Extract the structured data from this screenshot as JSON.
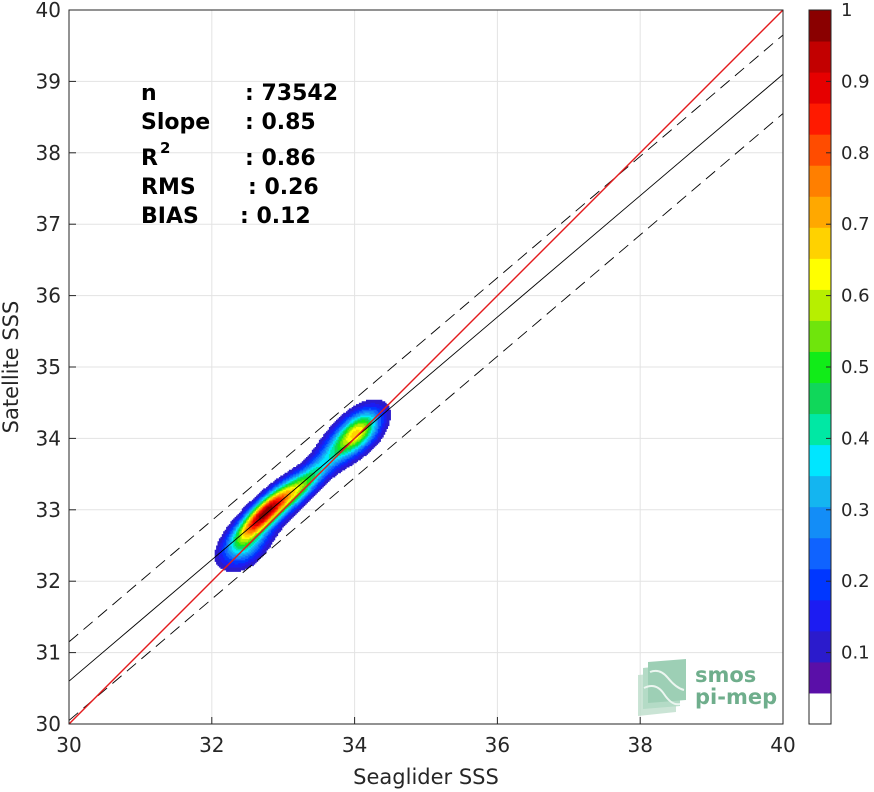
{
  "chart_data": {
    "type": "contour",
    "xlabel": "Seaglider SSS",
    "ylabel": "Satellite SSS",
    "xlim": [
      30,
      40
    ],
    "ylim": [
      30,
      40
    ],
    "xticks": [
      "30",
      "32",
      "34",
      "36",
      "38",
      "40"
    ],
    "yticks": [
      "30",
      "31",
      "32",
      "33",
      "34",
      "35",
      "36",
      "37",
      "38",
      "39",
      "40"
    ],
    "grid": true,
    "stats": [
      {
        "label": "n",
        "value": ": 73542"
      },
      {
        "label": "Slope",
        "value": ": 0.85"
      },
      {
        "label": "R",
        "sup": "2",
        "value": ": 0.86"
      },
      {
        "label": "RMS",
        "value": ": 0.26"
      },
      {
        "label": "BIAS",
        "value": ": 0.12"
      }
    ],
    "lines": {
      "identity": {
        "slope": 1.0,
        "intercept": 0.0,
        "color": "#e41a1c"
      },
      "fit": {
        "slope": 0.85,
        "intercept": 5.1,
        "color": "#000000"
      },
      "fit_band_offset": 0.55
    },
    "density_peaks": [
      {
        "x": 32.75,
        "y": 32.98,
        "relative_density": 1.0
      },
      {
        "x": 33.25,
        "y": 33.32,
        "relative_density": 0.7
      },
      {
        "x": 34.05,
        "y": 34.1,
        "relative_density": 0.7
      }
    ],
    "colorbar": {
      "range": [
        0,
        1
      ],
      "ticks": [
        "0.1",
        "0.2",
        "0.3",
        "0.4",
        "0.5",
        "0.6",
        "0.7",
        "0.8",
        "0.9",
        "1"
      ],
      "colors": [
        "#ffffff",
        "#5a0fa8",
        "#2b1bcc",
        "#1c1cf2",
        "#0037ff",
        "#0f63ff",
        "#138df7",
        "#14b5f0",
        "#00e6ff",
        "#00e8a4",
        "#10d75a",
        "#11ec18",
        "#6fe50c",
        "#b7ef00",
        "#ffff00",
        "#ffd200",
        "#ffa800",
        "#ff7f00",
        "#ff4c00",
        "#ff1a00",
        "#e60000",
        "#c20000",
        "#8a0000"
      ]
    }
  },
  "logo": {
    "line1": "smos",
    "line2": "pi-mep"
  }
}
